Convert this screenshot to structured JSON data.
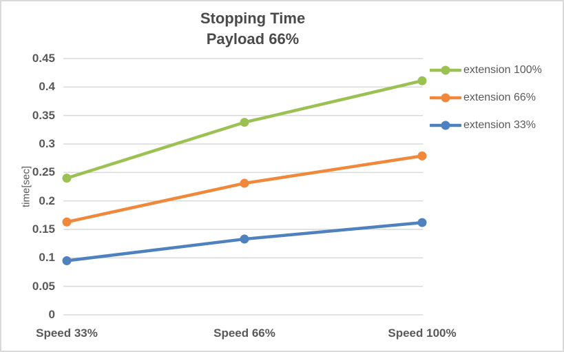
{
  "chart_data": {
    "type": "line",
    "title": "Stopping Time",
    "subtitle": "Payload 66%",
    "ylabel": "time[sec]",
    "xlabel": "",
    "categories": [
      "Speed 33%",
      "Speed 66%",
      "Speed 100%"
    ],
    "series": [
      {
        "name": "extension 100%",
        "color": "#9cc153",
        "values": [
          0.24,
          0.338,
          0.411
        ]
      },
      {
        "name": "extension 66%",
        "color": "#f0883c",
        "values": [
          0.163,
          0.231,
          0.279
        ]
      },
      {
        "name": "extension 33%",
        "color": "#4e81bd",
        "values": [
          0.095,
          0.133,
          0.162
        ]
      }
    ],
    "ylim": [
      0,
      0.45
    ],
    "ytick_step": 0.05,
    "ytick_labels": [
      "0",
      "0.05",
      "0.1",
      "0.15",
      "0.2",
      "0.25",
      "0.3",
      "0.35",
      "0.4",
      "0.45"
    ],
    "grid": "horizontal",
    "gridline_color": "#d9d9d9",
    "text_color": "#595959",
    "legend_position": "right"
  }
}
